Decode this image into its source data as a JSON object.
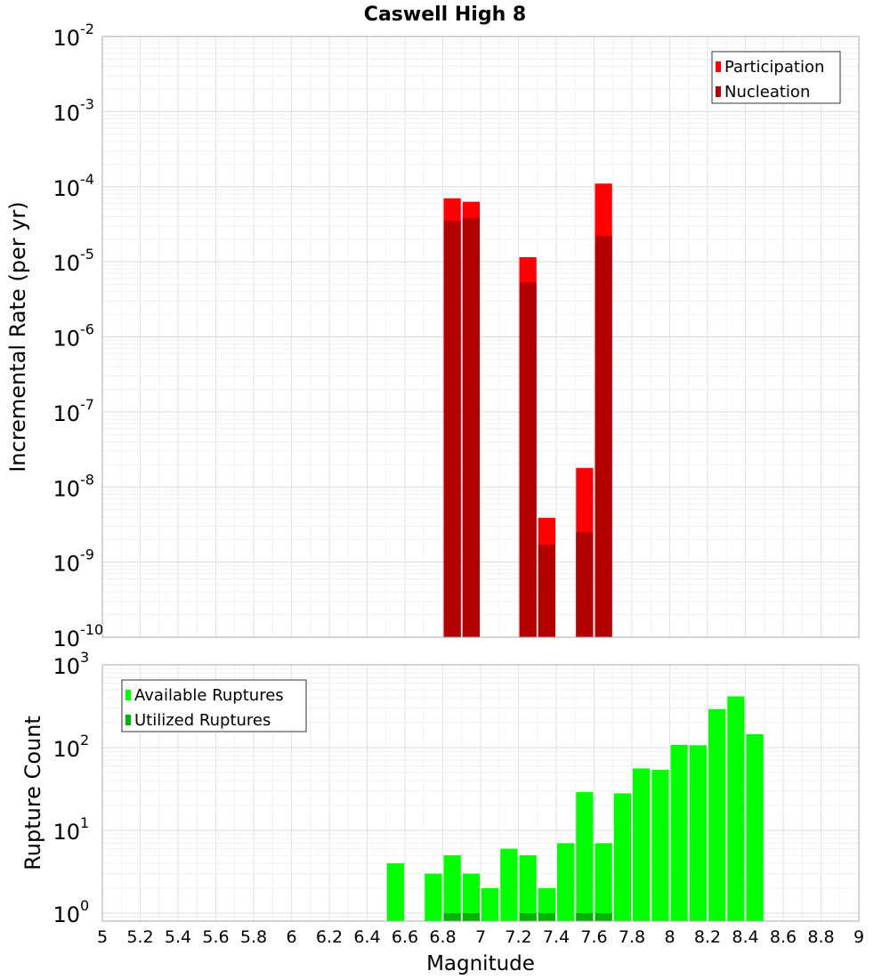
{
  "chart_data": [
    {
      "type": "bar",
      "title": "Caswell High 8",
      "xlabel": "",
      "ylabel": "Incremental Rate (per yr)",
      "yscale": "log",
      "ylim": [
        1e-10,
        0.01
      ],
      "xlim": [
        5,
        9
      ],
      "bin_width": 0.1,
      "grid": true,
      "legend_position": "top-right",
      "y_ticks": [
        {
          "base": "10",
          "exp": "-10"
        },
        {
          "base": "10",
          "exp": "-9"
        },
        {
          "base": "10",
          "exp": "-8"
        },
        {
          "base": "10",
          "exp": "-7"
        },
        {
          "base": "10",
          "exp": "-6"
        },
        {
          "base": "10",
          "exp": "-5"
        },
        {
          "base": "10",
          "exp": "-4"
        },
        {
          "base": "10",
          "exp": "-3"
        },
        {
          "base": "10",
          "exp": "-2"
        }
      ],
      "series": [
        {
          "name": "Participation",
          "color": "#ff0000",
          "points": [
            {
              "x": 6.85,
              "y": 7e-05
            },
            {
              "x": 6.95,
              "y": 6.3e-05
            },
            {
              "x": 7.25,
              "y": 1.15e-05
            },
            {
              "x": 7.35,
              "y": 3.9e-09
            },
            {
              "x": 7.55,
              "y": 1.8e-08
            },
            {
              "x": 7.65,
              "y": 0.00011
            }
          ]
        },
        {
          "name": "Nucleation",
          "color": "#b30000",
          "points": [
            {
              "x": 6.85,
              "y": 3.5e-05
            },
            {
              "x": 6.95,
              "y": 3.8e-05
            },
            {
              "x": 7.25,
              "y": 5.3e-06
            },
            {
              "x": 7.35,
              "y": 1.7e-09
            },
            {
              "x": 7.55,
              "y": 2.5e-09
            },
            {
              "x": 7.65,
              "y": 2.2e-05
            }
          ]
        }
      ]
    },
    {
      "type": "bar",
      "title": "",
      "xlabel": "Magnitude",
      "ylabel": "Rupture Count",
      "yscale": "log",
      "ylim": [
        0.8,
        1000
      ],
      "xlim": [
        5,
        9
      ],
      "bin_width": 0.1,
      "grid": true,
      "legend_position": "top-left",
      "x_ticks": [
        "5",
        "5.2",
        "5.4",
        "5.6",
        "5.8",
        "6",
        "6.2",
        "6.4",
        "6.6",
        "6.8",
        "7",
        "7.2",
        "7.4",
        "7.6",
        "7.8",
        "8",
        "8.2",
        "8.4",
        "8.6",
        "8.8",
        "9"
      ],
      "y_ticks": [
        {
          "base": "10",
          "exp": "0"
        },
        {
          "base": "10",
          "exp": "1"
        },
        {
          "base": "10",
          "exp": "2"
        },
        {
          "base": "10",
          "exp": "3"
        }
      ],
      "series": [
        {
          "name": "Available Ruptures",
          "color": "#00ff00",
          "points": [
            {
              "x": 6.55,
              "y": 4
            },
            {
              "x": 6.75,
              "y": 3
            },
            {
              "x": 6.85,
              "y": 5
            },
            {
              "x": 6.95,
              "y": 3
            },
            {
              "x": 7.05,
              "y": 2
            },
            {
              "x": 7.15,
              "y": 6
            },
            {
              "x": 7.25,
              "y": 5
            },
            {
              "x": 7.35,
              "y": 2
            },
            {
              "x": 7.45,
              "y": 7
            },
            {
              "x": 7.55,
              "y": 29
            },
            {
              "x": 7.65,
              "y": 7
            },
            {
              "x": 7.75,
              "y": 28
            },
            {
              "x": 7.85,
              "y": 56
            },
            {
              "x": 7.95,
              "y": 54
            },
            {
              "x": 8.05,
              "y": 108
            },
            {
              "x": 8.15,
              "y": 107
            },
            {
              "x": 8.25,
              "y": 292
            },
            {
              "x": 8.35,
              "y": 416
            },
            {
              "x": 8.45,
              "y": 145
            }
          ]
        },
        {
          "name": "Utilized Ruptures",
          "color": "#00b300",
          "points": [
            {
              "x": 6.85,
              "y": 1
            },
            {
              "x": 6.95,
              "y": 1
            },
            {
              "x": 7.25,
              "y": 1
            },
            {
              "x": 7.35,
              "y": 1
            },
            {
              "x": 7.55,
              "y": 1
            },
            {
              "x": 7.65,
              "y": 1
            }
          ]
        }
      ]
    }
  ]
}
